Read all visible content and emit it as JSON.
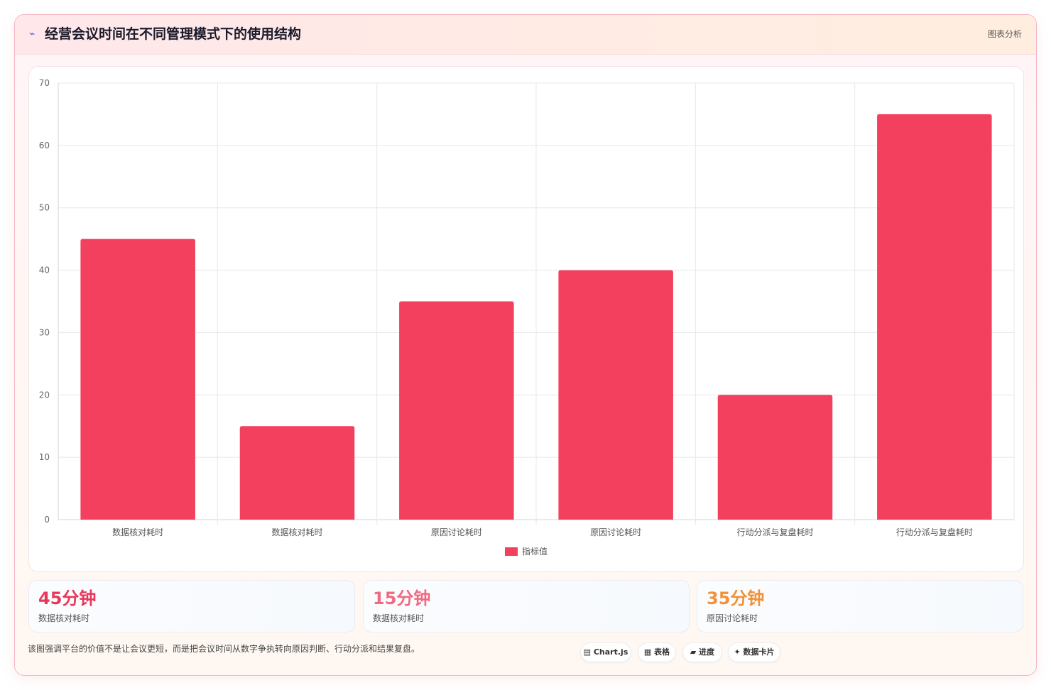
{
  "header": {
    "icon": "chart-line-icon",
    "title": "经营会议时间在不同管理模式下的使用结构",
    "tag": "图表分析"
  },
  "chart_data": {
    "type": "bar",
    "categories": [
      "数据核对耗时",
      "数据核对耗时",
      "原因讨论耗时",
      "原因讨论耗时",
      "行动分派与复盘耗时",
      "行动分派与复盘耗时"
    ],
    "series": [
      {
        "name": "指标值",
        "values": [
          45,
          15,
          35,
          40,
          20,
          65
        ],
        "color": "#f2405e"
      }
    ],
    "ylim": [
      0,
      70
    ],
    "yticks": [
      0,
      10,
      20,
      30,
      40,
      50,
      60,
      70
    ],
    "grid": true,
    "legend": "bottom"
  },
  "stats": [
    {
      "value": "45分钟",
      "label": "数据核对耗时",
      "color": "#e8375a"
    },
    {
      "value": "15分钟",
      "label": "数据核对耗时",
      "color": "#f06a82"
    },
    {
      "value": "35分钟",
      "label": "原因讨论耗时",
      "color": "#f0923a"
    }
  ],
  "footnote": "该图强调平台的价值不是让会议更短，而是把会议时间从数字争执转向原因判断、行动分派和结果复盘。",
  "chips": [
    {
      "icon": "chart-icon",
      "label": "Chart.js"
    },
    {
      "icon": "table-icon",
      "label": "表格"
    },
    {
      "icon": "progress-icon",
      "label": "进度"
    },
    {
      "icon": "sparkle-icon",
      "label": "数据卡片"
    }
  ],
  "chip_glyphs": [
    "▤",
    "▦",
    "▰",
    "✦"
  ]
}
